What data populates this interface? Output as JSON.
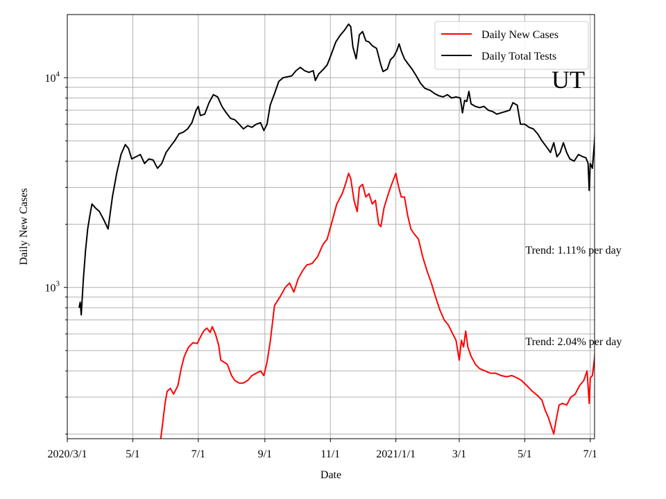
{
  "chart_data": {
    "type": "line",
    "title": "",
    "state_label": "UT",
    "xlabel": "Date",
    "ylabel": "Daily New Cases",
    "y_scale": "log",
    "ylim": [
      190,
      20000
    ],
    "xlim": [
      "2020-03-01",
      "2021-07-05"
    ],
    "x_ticks": [
      {
        "date": "2020-03-01",
        "label": "2020/3/1"
      },
      {
        "date": "2020-05-01",
        "label": "5/1"
      },
      {
        "date": "2020-07-01",
        "label": "7/1"
      },
      {
        "date": "2020-09-01",
        "label": "9/1"
      },
      {
        "date": "2020-11-01",
        "label": "11/1"
      },
      {
        "date": "2021-01-01",
        "label": "2021/1/1"
      },
      {
        "date": "2021-03-01",
        "label": "3/1"
      },
      {
        "date": "2021-05-01",
        "label": "5/1"
      },
      {
        "date": "2021-07-01",
        "label": "7/1"
      }
    ],
    "y_major_ticks": [
      {
        "value": 1000,
        "base": "10",
        "exp": "3"
      },
      {
        "value": 10000,
        "base": "10",
        "exp": "4"
      }
    ],
    "y_minor_ticks": [
      200,
      300,
      400,
      500,
      600,
      700,
      800,
      900,
      2000,
      3000,
      4000,
      5000,
      6000,
      7000,
      8000,
      9000
    ],
    "grid": true,
    "legend_position": "upper-right",
    "annotations": [
      {
        "text": "Trend: 1.11% per day",
        "date": "2021-05-01",
        "value": 1450
      },
      {
        "text": "Trend: 2.04% per day",
        "date": "2021-05-01",
        "value": 530
      }
    ],
    "series": [
      {
        "name": "Daily New Cases",
        "color": "#ff0000",
        "points": [
          [
            "2020-05-27",
            190
          ],
          [
            "2020-05-29",
            230
          ],
          [
            "2020-05-31",
            280
          ],
          [
            "2020-06-02",
            320
          ],
          [
            "2020-06-05",
            330
          ],
          [
            "2020-06-08",
            310
          ],
          [
            "2020-06-12",
            340
          ],
          [
            "2020-06-15",
            410
          ],
          [
            "2020-06-18",
            470
          ],
          [
            "2020-06-22",
            520
          ],
          [
            "2020-06-26",
            545
          ],
          [
            "2020-06-30",
            540
          ],
          [
            "2020-07-03",
            580
          ],
          [
            "2020-07-06",
            620
          ],
          [
            "2020-07-09",
            640
          ],
          [
            "2020-07-12",
            610
          ],
          [
            "2020-07-14",
            650
          ],
          [
            "2020-07-17",
            600
          ],
          [
            "2020-07-20",
            530
          ],
          [
            "2020-07-22",
            450
          ],
          [
            "2020-07-25",
            440
          ],
          [
            "2020-07-28",
            430
          ],
          [
            "2020-08-01",
            380
          ],
          [
            "2020-08-04",
            360
          ],
          [
            "2020-08-08",
            350
          ],
          [
            "2020-08-12",
            350
          ],
          [
            "2020-08-16",
            360
          ],
          [
            "2020-08-20",
            380
          ],
          [
            "2020-08-24",
            390
          ],
          [
            "2020-08-28",
            400
          ],
          [
            "2020-08-31",
            380
          ],
          [
            "2020-09-03",
            440
          ],
          [
            "2020-09-06",
            550
          ],
          [
            "2020-09-10",
            820
          ],
          [
            "2020-09-15",
            900
          ],
          [
            "2020-09-20",
            1000
          ],
          [
            "2020-09-24",
            1050
          ],
          [
            "2020-09-28",
            950
          ],
          [
            "2020-10-02",
            1100
          ],
          [
            "2020-10-06",
            1200
          ],
          [
            "2020-10-10",
            1280
          ],
          [
            "2020-10-15",
            1300
          ],
          [
            "2020-10-20",
            1400
          ],
          [
            "2020-10-25",
            1600
          ],
          [
            "2020-10-29",
            1700
          ],
          [
            "2020-11-03",
            2100
          ],
          [
            "2020-11-07",
            2500
          ],
          [
            "2020-11-12",
            2800
          ],
          [
            "2020-11-15",
            3100
          ],
          [
            "2020-11-18",
            3500
          ],
          [
            "2020-11-20",
            3300
          ],
          [
            "2020-11-23",
            2600
          ],
          [
            "2020-11-26",
            2300
          ],
          [
            "2020-11-28",
            3000
          ],
          [
            "2020-12-01",
            3100
          ],
          [
            "2020-12-04",
            2700
          ],
          [
            "2020-12-07",
            2800
          ],
          [
            "2020-12-10",
            2500
          ],
          [
            "2020-12-13",
            2600
          ],
          [
            "2020-12-16",
            2000
          ],
          [
            "2020-12-18",
            1950
          ],
          [
            "2020-12-21",
            2400
          ],
          [
            "2020-12-24",
            2700
          ],
          [
            "2020-12-27",
            3000
          ],
          [
            "2021-01-01",
            3500
          ],
          [
            "2021-01-03",
            3100
          ],
          [
            "2021-01-06",
            2700
          ],
          [
            "2021-01-09",
            2700
          ],
          [
            "2021-01-12",
            2200
          ],
          [
            "2021-01-15",
            1900
          ],
          [
            "2021-01-18",
            1800
          ],
          [
            "2021-01-22",
            1700
          ],
          [
            "2021-01-26",
            1400
          ],
          [
            "2021-01-30",
            1200
          ],
          [
            "2021-02-03",
            1050
          ],
          [
            "2021-02-07",
            900
          ],
          [
            "2021-02-11",
            780
          ],
          [
            "2021-02-15",
            700
          ],
          [
            "2021-02-19",
            660
          ],
          [
            "2021-02-23",
            600
          ],
          [
            "2021-02-26",
            560
          ],
          [
            "2021-03-01",
            450
          ],
          [
            "2021-03-03",
            560
          ],
          [
            "2021-03-05",
            520
          ],
          [
            "2021-03-07",
            620
          ],
          [
            "2021-03-09",
            520
          ],
          [
            "2021-03-12",
            470
          ],
          [
            "2021-03-16",
            430
          ],
          [
            "2021-03-20",
            410
          ],
          [
            "2021-03-25",
            400
          ],
          [
            "2021-03-30",
            390
          ],
          [
            "2021-04-04",
            390
          ],
          [
            "2021-04-09",
            380
          ],
          [
            "2021-04-14",
            375
          ],
          [
            "2021-04-19",
            380
          ],
          [
            "2021-04-24",
            370
          ],
          [
            "2021-04-28",
            360
          ],
          [
            "2021-05-03",
            340
          ],
          [
            "2021-05-08",
            320
          ],
          [
            "2021-05-13",
            305
          ],
          [
            "2021-05-17",
            290
          ],
          [
            "2021-05-20",
            260
          ],
          [
            "2021-05-23",
            240
          ],
          [
            "2021-05-26",
            215
          ],
          [
            "2021-05-28",
            200
          ],
          [
            "2021-05-30",
            230
          ],
          [
            "2021-06-02",
            275
          ],
          [
            "2021-06-05",
            280
          ],
          [
            "2021-06-09",
            275
          ],
          [
            "2021-06-13",
            300
          ],
          [
            "2021-06-17",
            310
          ],
          [
            "2021-06-21",
            340
          ],
          [
            "2021-06-25",
            360
          ],
          [
            "2021-06-28",
            400
          ],
          [
            "2021-06-30",
            280
          ],
          [
            "2021-07-01",
            370
          ],
          [
            "2021-07-03",
            380
          ],
          [
            "2021-07-05",
            460
          ],
          [
            "2021-07-06",
            560
          ]
        ]
      },
      {
        "name": "Daily Total Tests",
        "color": "#000000",
        "points": [
          [
            "2020-03-12",
            800
          ],
          [
            "2020-03-13",
            850
          ],
          [
            "2020-03-14",
            740
          ],
          [
            "2020-03-16",
            1100
          ],
          [
            "2020-03-18",
            1500
          ],
          [
            "2020-03-20",
            1900
          ],
          [
            "2020-03-22",
            2200
          ],
          [
            "2020-03-24",
            2500
          ],
          [
            "2020-03-27",
            2400
          ],
          [
            "2020-03-31",
            2300
          ],
          [
            "2020-04-04",
            2100
          ],
          [
            "2020-04-08",
            1900
          ],
          [
            "2020-04-12",
            2700
          ],
          [
            "2020-04-16",
            3500
          ],
          [
            "2020-04-20",
            4300
          ],
          [
            "2020-04-24",
            4800
          ],
          [
            "2020-04-27",
            4600
          ],
          [
            "2020-04-30",
            4100
          ],
          [
            "2020-05-04",
            4200
          ],
          [
            "2020-05-08",
            4300
          ],
          [
            "2020-05-12",
            3900
          ],
          [
            "2020-05-16",
            4100
          ],
          [
            "2020-05-20",
            4050
          ],
          [
            "2020-05-24",
            3700
          ],
          [
            "2020-05-28",
            3900
          ],
          [
            "2020-06-01",
            4400
          ],
          [
            "2020-06-05",
            4700
          ],
          [
            "2020-06-09",
            5000
          ],
          [
            "2020-06-13",
            5400
          ],
          [
            "2020-06-17",
            5500
          ],
          [
            "2020-06-21",
            5700
          ],
          [
            "2020-06-25",
            6100
          ],
          [
            "2020-06-29",
            7000
          ],
          [
            "2020-07-01",
            7300
          ],
          [
            "2020-07-03",
            6600
          ],
          [
            "2020-07-07",
            6700
          ],
          [
            "2020-07-11",
            7600
          ],
          [
            "2020-07-15",
            8300
          ],
          [
            "2020-07-19",
            8100
          ],
          [
            "2020-07-23",
            7300
          ],
          [
            "2020-07-27",
            6800
          ],
          [
            "2020-07-31",
            6400
          ],
          [
            "2020-08-04",
            6300
          ],
          [
            "2020-08-08",
            6000
          ],
          [
            "2020-08-12",
            5700
          ],
          [
            "2020-08-16",
            5900
          ],
          [
            "2020-08-20",
            5800
          ],
          [
            "2020-08-24",
            6000
          ],
          [
            "2020-08-28",
            6100
          ],
          [
            "2020-08-31",
            5600
          ],
          [
            "2020-09-03",
            6000
          ],
          [
            "2020-09-06",
            7400
          ],
          [
            "2020-09-10",
            8400
          ],
          [
            "2020-09-14",
            9600
          ],
          [
            "2020-09-18",
            10000
          ],
          [
            "2020-09-22",
            10100
          ],
          [
            "2020-09-26",
            10200
          ],
          [
            "2020-09-30",
            10800
          ],
          [
            "2020-10-04",
            11200
          ],
          [
            "2020-10-08",
            10800
          ],
          [
            "2020-10-12",
            10600
          ],
          [
            "2020-10-16",
            10800
          ],
          [
            "2020-10-18",
            9700
          ],
          [
            "2020-10-21",
            10400
          ],
          [
            "2020-10-25",
            10900
          ],
          [
            "2020-10-29",
            11500
          ],
          [
            "2020-11-02",
            13000
          ],
          [
            "2020-11-06",
            14800
          ],
          [
            "2020-11-10",
            15900
          ],
          [
            "2020-11-14",
            16800
          ],
          [
            "2020-11-18",
            18000
          ],
          [
            "2020-11-20",
            17500
          ],
          [
            "2020-11-22",
            14000
          ],
          [
            "2020-11-25",
            12300
          ],
          [
            "2020-11-28",
            16000
          ],
          [
            "2020-12-01",
            16600
          ],
          [
            "2020-12-04",
            15000
          ],
          [
            "2020-12-07",
            14800
          ],
          [
            "2020-12-10",
            14200
          ],
          [
            "2020-12-14",
            13800
          ],
          [
            "2020-12-18",
            11500
          ],
          [
            "2020-12-20",
            10700
          ],
          [
            "2020-12-24",
            11000
          ],
          [
            "2020-12-27",
            12200
          ],
          [
            "2020-12-30",
            12600
          ],
          [
            "2021-01-02",
            13500
          ],
          [
            "2021-01-04",
            14500
          ],
          [
            "2021-01-06",
            13400
          ],
          [
            "2021-01-09",
            12300
          ],
          [
            "2021-01-12",
            11700
          ],
          [
            "2021-01-16",
            11000
          ],
          [
            "2021-01-20",
            10200
          ],
          [
            "2021-01-24",
            9400
          ],
          [
            "2021-01-28",
            8900
          ],
          [
            "2021-02-02",
            8700
          ],
          [
            "2021-02-06",
            8400
          ],
          [
            "2021-02-10",
            8200
          ],
          [
            "2021-02-14",
            8100
          ],
          [
            "2021-02-18",
            8300
          ],
          [
            "2021-02-22",
            8000
          ],
          [
            "2021-02-26",
            8100
          ],
          [
            "2021-03-02",
            8000
          ],
          [
            "2021-03-04",
            6800
          ],
          [
            "2021-03-06",
            7800
          ],
          [
            "2021-03-08",
            7700
          ],
          [
            "2021-03-10",
            8600
          ],
          [
            "2021-03-12",
            7500
          ],
          [
            "2021-03-16",
            7300
          ],
          [
            "2021-03-20",
            7200
          ],
          [
            "2021-03-24",
            7300
          ],
          [
            "2021-03-28",
            7000
          ],
          [
            "2021-04-01",
            6900
          ],
          [
            "2021-04-05",
            6700
          ],
          [
            "2021-04-09",
            6800
          ],
          [
            "2021-04-13",
            6900
          ],
          [
            "2021-04-17",
            7000
          ],
          [
            "2021-04-20",
            7600
          ],
          [
            "2021-04-24",
            7400
          ],
          [
            "2021-04-27",
            6000
          ],
          [
            "2021-05-01",
            6000
          ],
          [
            "2021-05-05",
            5800
          ],
          [
            "2021-05-09",
            5700
          ],
          [
            "2021-05-13",
            5400
          ],
          [
            "2021-05-17",
            5000
          ],
          [
            "2021-05-21",
            4700
          ],
          [
            "2021-05-25",
            4400
          ],
          [
            "2021-05-28",
            4900
          ],
          [
            "2021-05-31",
            4200
          ],
          [
            "2021-06-03",
            4400
          ],
          [
            "2021-06-06",
            4900
          ],
          [
            "2021-06-09",
            4400
          ],
          [
            "2021-06-12",
            4100
          ],
          [
            "2021-06-16",
            4000
          ],
          [
            "2021-06-20",
            4300
          ],
          [
            "2021-06-24",
            4200
          ],
          [
            "2021-06-27",
            4150
          ],
          [
            "2021-06-29",
            3900
          ],
          [
            "2021-06-30",
            2900
          ],
          [
            "2021-07-01",
            3900
          ],
          [
            "2021-07-03",
            3700
          ],
          [
            "2021-07-05",
            5000
          ],
          [
            "2021-07-06",
            6400
          ]
        ]
      }
    ]
  }
}
